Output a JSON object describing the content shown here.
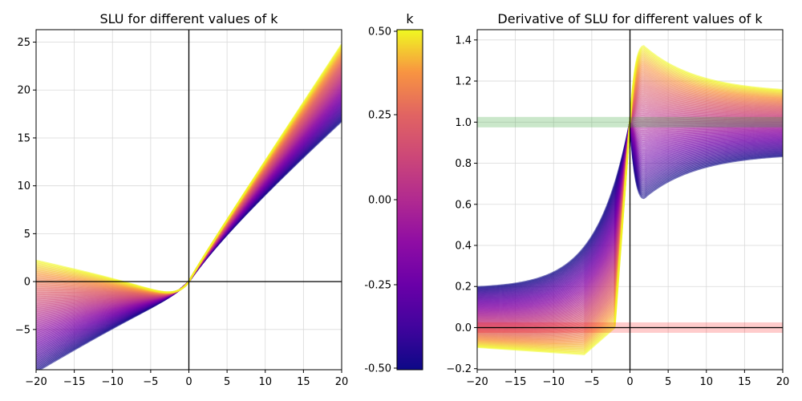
{
  "chart_data": [
    {
      "type": "line",
      "title": "SLU for different values of k",
      "xlabel": "",
      "ylabel": "",
      "xlim": [
        -20,
        20
      ],
      "ylim": [
        -9.2,
        26.3
      ],
      "xticks": [
        -20,
        -15,
        -10,
        -5,
        0,
        5,
        10,
        15,
        20
      ],
      "yticks": [
        -5,
        0,
        5,
        10,
        15,
        20,
        25
      ],
      "xtick_labels": [
        "−20",
        "−15",
        "−10",
        "−5",
        "0",
        "5",
        "10",
        "15",
        "20"
      ],
      "ytick_labels": [
        "−5",
        "0",
        "5",
        "10",
        "15",
        "20",
        "25"
      ],
      "grid": true,
      "colormap": "plasma",
      "series_count": 80,
      "k_range": [
        -0.5,
        0.5
      ],
      "series_sample": [
        {
          "k": -0.5,
          "x": [
            -20,
            -10,
            -5,
            0,
            5,
            10,
            20
          ],
          "y": [
            -7.7,
            -5.3,
            -3.2,
            0,
            3.8,
            7.8,
            15.5
          ]
        },
        {
          "k": 0.0,
          "x": [
            -20,
            -10,
            -5,
            0,
            5,
            10,
            20
          ],
          "y": [
            -2.9,
            -2.1,
            -1.6,
            0,
            4.3,
            9.5,
            19.6
          ]
        },
        {
          "k": 0.5,
          "x": [
            -20,
            -10,
            -5,
            0,
            5,
            10,
            20
          ],
          "y": [
            1.6,
            0.4,
            -0.5,
            0,
            5.1,
            11.6,
            24.6
          ]
        }
      ],
      "reference_lines": {
        "x": 0,
        "y": 0
      }
    },
    {
      "type": "colorbar",
      "title": "k",
      "colormap": "plasma",
      "range": [
        -0.5,
        0.5
      ],
      "ticks": [
        -0.5,
        -0.25,
        0.0,
        0.25,
        0.5
      ],
      "tick_labels": [
        "-0.50",
        "-0.25",
        "0.00",
        "0.25",
        "0.50"
      ]
    },
    {
      "type": "line",
      "title": "Derivative of SLU for different values of k",
      "xlabel": "",
      "ylabel": "",
      "xlim": [
        -20,
        20
      ],
      "ylim": [
        -0.205,
        1.45
      ],
      "xticks": [
        -20,
        -15,
        -10,
        -5,
        0,
        5,
        10,
        15,
        20
      ],
      "yticks": [
        -0.2,
        0.0,
        0.2,
        0.4,
        0.6,
        0.8,
        1.0,
        1.2,
        1.4
      ],
      "xtick_labels": [
        "−20",
        "−15",
        "−10",
        "−5",
        "0",
        "5",
        "10",
        "15",
        "20"
      ],
      "ytick_labels": [
        "−0.2",
        "0.0",
        "0.2",
        "0.4",
        "0.6",
        "0.8",
        "1.0",
        "1.2",
        "1.4"
      ],
      "grid": true,
      "colormap": "plasma",
      "series_count": 80,
      "k_range": [
        -0.5,
        0.5
      ],
      "series_sample": [
        {
          "k": -0.5,
          "x": [
            -20,
            -10,
            -5,
            0,
            1.8,
            5,
            10,
            20
          ],
          "y": [
            0.19,
            0.3,
            0.49,
            1.0,
            0.63,
            0.7,
            0.78,
            0.85
          ]
        },
        {
          "k": 0.5,
          "x": [
            -20,
            -10,
            -5,
            -2,
            0,
            1.8,
            5,
            10,
            20
          ],
          "y": [
            -0.095,
            -0.12,
            -0.13,
            0.0,
            1.0,
            1.37,
            1.28,
            1.2,
            1.14
          ]
        }
      ],
      "bands": [
        {
          "y": 1.0,
          "color": "#2ca02c",
          "alpha": 0.25
        },
        {
          "y": 0.0,
          "color": "#ff0000",
          "alpha": 0.2
        }
      ],
      "reference_lines": {
        "x": 0,
        "y": 0
      }
    }
  ]
}
